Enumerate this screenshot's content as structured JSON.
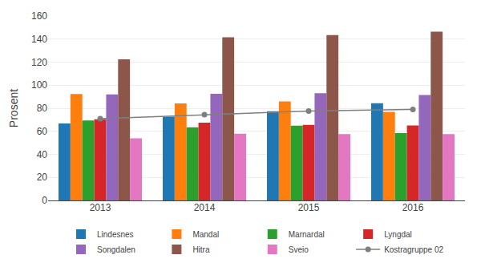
{
  "chart_data": {
    "type": "bar",
    "ylabel": "Prosent",
    "categories": [
      "2013",
      "2014",
      "2015",
      "2016"
    ],
    "series": [
      {
        "name": "Lindesnes",
        "type": "bar",
        "values": [
          66.8,
          72.7,
          77.4,
          84.4
        ]
      },
      {
        "name": "Mandal",
        "type": "bar",
        "values": [
          92.3,
          84.1,
          85.9,
          76.8
        ]
      },
      {
        "name": "Marnardal",
        "type": "bar",
        "values": [
          69.4,
          63.5,
          64.9,
          58.5
        ]
      },
      {
        "name": "Lyngdal",
        "type": "bar",
        "values": [
          70.4,
          67.5,
          65.5,
          65.0
        ]
      },
      {
        "name": "Songdalen",
        "type": "bar",
        "values": [
          92.0,
          92.5,
          93.0,
          91.5
        ]
      },
      {
        "name": "Hitra",
        "type": "bar",
        "values": [
          122.5,
          141.5,
          143.5,
          146.5
        ]
      },
      {
        "name": "Sveio",
        "type": "bar",
        "values": [
          54.0,
          58.0,
          57.5,
          57.5
        ]
      },
      {
        "name": "Kostragruppe 02",
        "type": "line",
        "marker": "circle",
        "line_style": "solid",
        "values": [
          71.0,
          74.5,
          77.5,
          79.0
        ]
      }
    ],
    "ylim": [
      0,
      160
    ],
    "yticks": [
      0,
      20,
      40,
      60,
      80,
      100,
      120,
      140,
      160
    ],
    "grid": true,
    "legend": "bottom"
  }
}
